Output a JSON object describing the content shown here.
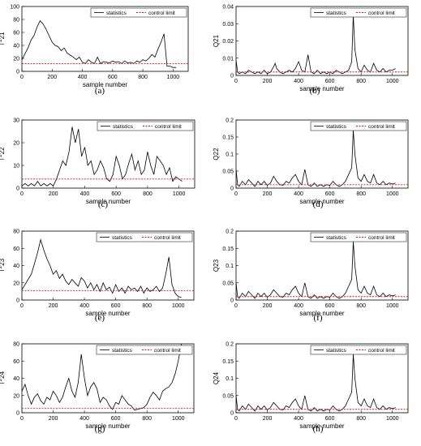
{
  "figure": {
    "legend": {
      "statistics": "statistics",
      "control_limit": "control limit"
    },
    "colors": {
      "statistics": "#000000",
      "control_limit": "#d11a1a",
      "axes": "#000000"
    }
  },
  "chart_data": [
    {
      "id": "a",
      "caption": "(a)",
      "type": "line",
      "xlabel": "sample number",
      "ylabel": "T^2 21",
      "xlim": [
        0,
        1100
      ],
      "ylim": [
        0,
        100
      ],
      "xticks": [
        0,
        200,
        400,
        600,
        800,
        1000
      ],
      "yticks": [
        0,
        20,
        40,
        60,
        80,
        100
      ],
      "control_limit": 12,
      "series": [
        {
          "name": "statistics",
          "values_x": [
            0,
            20,
            40,
            60,
            80,
            100,
            120,
            140,
            160,
            180,
            200,
            220,
            240,
            260,
            280,
            300,
            320,
            340,
            360,
            380,
            400,
            420,
            440,
            460,
            480,
            500,
            520,
            540,
            560,
            580,
            600,
            620,
            640,
            660,
            680,
            700,
            720,
            740,
            760,
            780,
            800,
            820,
            840,
            860,
            880,
            900,
            920,
            940,
            960,
            980,
            1000,
            1020
          ],
          "values_y": [
            18,
            27,
            36,
            48,
            55,
            68,
            78,
            73,
            65,
            55,
            45,
            40,
            38,
            32,
            36,
            28,
            25,
            22,
            18,
            22,
            14,
            12,
            18,
            14,
            12,
            22,
            12,
            15,
            14,
            13,
            16,
            14,
            15,
            12,
            16,
            13,
            14,
            12,
            16,
            14,
            18,
            16,
            20,
            26,
            22,
            34,
            45,
            58,
            8,
            8,
            6,
            6
          ]
        }
      ]
    },
    {
      "id": "b",
      "caption": "(b)",
      "type": "line",
      "xlabel": "sample number",
      "ylabel": "Q21",
      "xlim": [
        0,
        1100
      ],
      "ylim": [
        0,
        0.04
      ],
      "xticks": [
        0,
        200,
        400,
        600,
        800,
        1000
      ],
      "yticks": [
        0,
        0.01,
        0.02,
        0.03,
        0.04
      ],
      "control_limit": 0.002,
      "series": [
        {
          "name": "statistics",
          "values_x": [
            0,
            10,
            20,
            40,
            60,
            80,
            100,
            120,
            140,
            160,
            180,
            200,
            220,
            240,
            250,
            260,
            280,
            300,
            320,
            340,
            360,
            380,
            400,
            420,
            440,
            460,
            480,
            500,
            520,
            540,
            560,
            580,
            600,
            620,
            640,
            660,
            680,
            700,
            720,
            740,
            750,
            760,
            780,
            800,
            820,
            840,
            860,
            880,
            900,
            920,
            940,
            960,
            980,
            1000,
            1020
          ],
          "values_y": [
            0.009,
            0.002,
            0.001,
            0.002,
            0.001,
            0.003,
            0.002,
            0.001,
            0.002,
            0.001,
            0.003,
            0.001,
            0.002,
            0.005,
            0.007,
            0.004,
            0.002,
            0.001,
            0.002,
            0.003,
            0.002,
            0.004,
            0.008,
            0.003,
            0.002,
            0.012,
            0.002,
            0.001,
            0.003,
            0.001,
            0.002,
            0.001,
            0.002,
            0.001,
            0.003,
            0.002,
            0.001,
            0.002,
            0.003,
            0.008,
            0.035,
            0.015,
            0.004,
            0.002,
            0.006,
            0.003,
            0.002,
            0.007,
            0.003,
            0.002,
            0.004,
            0.002,
            0.003,
            0.003,
            0.004
          ]
        }
      ]
    },
    {
      "id": "c",
      "caption": "(c)",
      "type": "line",
      "xlabel": "sample number",
      "ylabel": "T^2 22",
      "xlim": [
        0,
        1100
      ],
      "ylim": [
        0,
        30
      ],
      "xticks": [
        0,
        200,
        400,
        600,
        800,
        1000
      ],
      "yticks": [
        0,
        10,
        20,
        30
      ],
      "control_limit": 4,
      "series": [
        {
          "name": "statistics",
          "values_x": [
            0,
            20,
            40,
            60,
            80,
            100,
            120,
            140,
            160,
            180,
            200,
            220,
            240,
            260,
            280,
            300,
            320,
            340,
            360,
            380,
            400,
            420,
            440,
            460,
            480,
            500,
            520,
            540,
            560,
            580,
            600,
            620,
            640,
            660,
            680,
            700,
            720,
            740,
            760,
            780,
            800,
            820,
            840,
            860,
            880,
            900,
            920,
            940,
            960,
            980,
            1000,
            1020
          ],
          "values_y": [
            1,
            2,
            1,
            2,
            1,
            3,
            1,
            2,
            1,
            2,
            1,
            4,
            8,
            12,
            10,
            16,
            27,
            20,
            26,
            14,
            18,
            10,
            12,
            6,
            8,
            12,
            9,
            4,
            3,
            6,
            14,
            10,
            4,
            6,
            11,
            15,
            8,
            12,
            6,
            8,
            16,
            10,
            6,
            14,
            12,
            10,
            6,
            9,
            3,
            5,
            4,
            3
          ]
        }
      ]
    },
    {
      "id": "d",
      "caption": "(d)",
      "type": "line",
      "xlabel": "sample number",
      "ylabel": "Q22",
      "xlim": [
        0,
        1100
      ],
      "ylim": [
        0,
        0.2
      ],
      "xticks": [
        0,
        200,
        400,
        600,
        800,
        1000
      ],
      "yticks": [
        0,
        0.05,
        0.1,
        0.15,
        0.2
      ],
      "control_limit": 0.01,
      "series": [
        {
          "name": "statistics",
          "values_x": [
            0,
            10,
            20,
            40,
            60,
            80,
            100,
            120,
            140,
            160,
            180,
            200,
            220,
            240,
            260,
            280,
            300,
            320,
            340,
            360,
            380,
            400,
            420,
            440,
            460,
            480,
            500,
            520,
            540,
            560,
            580,
            600,
            620,
            640,
            660,
            680,
            700,
            720,
            740,
            750,
            760,
            780,
            800,
            820,
            840,
            860,
            880,
            900,
            920,
            940,
            960,
            980,
            1000,
            1020
          ],
          "values_y": [
            0.055,
            0.01,
            0.005,
            0.02,
            0.01,
            0.025,
            0.015,
            0.005,
            0.02,
            0.01,
            0.02,
            0.008,
            0.015,
            0.035,
            0.02,
            0.01,
            0.008,
            0.02,
            0.015,
            0.03,
            0.04,
            0.02,
            0.01,
            0.055,
            0.01,
            0.005,
            0.015,
            0.005,
            0.01,
            0.005,
            0.01,
            0.008,
            0.02,
            0.01,
            0.005,
            0.01,
            0.02,
            0.04,
            0.06,
            0.17,
            0.1,
            0.03,
            0.02,
            0.04,
            0.02,
            0.015,
            0.04,
            0.015,
            0.01,
            0.02,
            0.01,
            0.015,
            0.012,
            0.015
          ]
        }
      ]
    },
    {
      "id": "e",
      "caption": "(e)",
      "type": "line",
      "xlabel": "sample number",
      "ylabel": "T^2 23",
      "xlim": [
        0,
        1100
      ],
      "ylim": [
        0,
        80
      ],
      "xticks": [
        0,
        200,
        400,
        600,
        800,
        1000
      ],
      "yticks": [
        0,
        20,
        40,
        60,
        80
      ],
      "control_limit": 11,
      "series": [
        {
          "name": "statistics",
          "values_x": [
            0,
            20,
            40,
            60,
            80,
            100,
            120,
            140,
            160,
            180,
            200,
            220,
            240,
            260,
            280,
            300,
            320,
            340,
            360,
            380,
            400,
            420,
            440,
            460,
            480,
            500,
            520,
            540,
            560,
            580,
            600,
            620,
            640,
            660,
            680,
            700,
            720,
            740,
            760,
            780,
            800,
            820,
            840,
            860,
            880,
            900,
            920,
            940,
            960,
            980,
            1000,
            1020
          ],
          "values_y": [
            12,
            18,
            24,
            30,
            42,
            55,
            70,
            58,
            48,
            40,
            30,
            34,
            25,
            30,
            22,
            18,
            24,
            20,
            16,
            26,
            22,
            14,
            20,
            12,
            18,
            10,
            20,
            12,
            15,
            8,
            18,
            10,
            14,
            8,
            16,
            12,
            14,
            10,
            16,
            8,
            14,
            10,
            12,
            16,
            10,
            14,
            30,
            50,
            18,
            8,
            4,
            3
          ]
        }
      ]
    },
    {
      "id": "f",
      "caption": "(f)",
      "type": "line",
      "xlabel": "sample number",
      "ylabel": "Q23",
      "xlim": [
        0,
        1100
      ],
      "ylim": [
        0,
        0.2
      ],
      "xticks": [
        0,
        200,
        400,
        600,
        800,
        1000
      ],
      "yticks": [
        0,
        0.05,
        0.1,
        0.15,
        0.2
      ],
      "control_limit": 0.01,
      "series": [
        {
          "name": "statistics",
          "values_x": [
            0,
            10,
            20,
            40,
            60,
            80,
            100,
            120,
            140,
            160,
            180,
            200,
            220,
            240,
            260,
            280,
            300,
            320,
            340,
            360,
            380,
            400,
            420,
            440,
            460,
            480,
            500,
            520,
            540,
            560,
            580,
            600,
            620,
            640,
            660,
            680,
            700,
            720,
            740,
            750,
            760,
            780,
            800,
            820,
            840,
            860,
            880,
            900,
            920,
            940,
            960,
            980,
            1000,
            1020
          ],
          "values_y": [
            0.05,
            0.01,
            0.005,
            0.02,
            0.01,
            0.025,
            0.015,
            0.005,
            0.02,
            0.01,
            0.02,
            0.008,
            0.015,
            0.03,
            0.02,
            0.01,
            0.008,
            0.02,
            0.015,
            0.03,
            0.04,
            0.02,
            0.01,
            0.05,
            0.01,
            0.005,
            0.015,
            0.005,
            0.01,
            0.005,
            0.01,
            0.008,
            0.02,
            0.01,
            0.005,
            0.01,
            0.02,
            0.04,
            0.06,
            0.17,
            0.1,
            0.03,
            0.02,
            0.04,
            0.02,
            0.015,
            0.04,
            0.015,
            0.01,
            0.02,
            0.01,
            0.015,
            0.012,
            0.015
          ]
        }
      ]
    },
    {
      "id": "g",
      "caption": "(g)",
      "type": "line",
      "xlabel": "sample number",
      "ylabel": "T^2 24",
      "xlim": [
        0,
        1100
      ],
      "ylim": [
        0,
        80
      ],
      "xticks": [
        0,
        200,
        400,
        600,
        800,
        1000
      ],
      "yticks": [
        0,
        20,
        40,
        60,
        80
      ],
      "control_limit": 5,
      "series": [
        {
          "name": "statistics",
          "values_x": [
            0,
            20,
            40,
            60,
            80,
            100,
            120,
            140,
            160,
            180,
            200,
            220,
            240,
            260,
            280,
            300,
            320,
            340,
            360,
            380,
            400,
            420,
            440,
            460,
            480,
            500,
            520,
            540,
            560,
            580,
            600,
            620,
            640,
            660,
            680,
            700,
            720,
            740,
            760,
            780,
            800,
            820,
            840,
            860,
            880,
            900,
            920,
            940,
            960,
            980,
            1000,
            1020
          ],
          "values_y": [
            25,
            33,
            20,
            10,
            18,
            22,
            14,
            10,
            18,
            15,
            25,
            20,
            12,
            18,
            30,
            40,
            25,
            18,
            35,
            68,
            40,
            20,
            30,
            35,
            28,
            12,
            18,
            15,
            8,
            4,
            12,
            10,
            20,
            15,
            10,
            8,
            3,
            4,
            5,
            6,
            10,
            18,
            24,
            20,
            15,
            25,
            28,
            30,
            35,
            45,
            60,
            80
          ]
        }
      ]
    },
    {
      "id": "h",
      "caption": "(h)",
      "type": "line",
      "xlabel": "sample number",
      "ylabel": "Q24",
      "xlim": [
        0,
        1100
      ],
      "ylim": [
        0,
        0.2
      ],
      "xticks": [
        0,
        200,
        400,
        600,
        800,
        1000
      ],
      "yticks": [
        0,
        0.05,
        0.1,
        0.15,
        0.2
      ],
      "control_limit": 0.01,
      "series": [
        {
          "name": "statistics",
          "values_x": [
            0,
            10,
            20,
            40,
            60,
            80,
            100,
            120,
            140,
            160,
            180,
            200,
            220,
            240,
            260,
            280,
            300,
            320,
            340,
            360,
            380,
            400,
            420,
            440,
            460,
            480,
            500,
            520,
            540,
            560,
            580,
            600,
            620,
            640,
            660,
            680,
            700,
            720,
            740,
            750,
            760,
            780,
            800,
            820,
            840,
            860,
            880,
            900,
            920,
            940,
            960,
            980,
            1000,
            1020
          ],
          "values_y": [
            0.05,
            0.01,
            0.005,
            0.02,
            0.01,
            0.025,
            0.015,
            0.005,
            0.02,
            0.01,
            0.02,
            0.008,
            0.015,
            0.03,
            0.02,
            0.01,
            0.008,
            0.02,
            0.015,
            0.03,
            0.04,
            0.02,
            0.01,
            0.05,
            0.01,
            0.005,
            0.015,
            0.005,
            0.01,
            0.005,
            0.01,
            0.008,
            0.02,
            0.01,
            0.005,
            0.01,
            0.02,
            0.04,
            0.06,
            0.17,
            0.1,
            0.03,
            0.02,
            0.04,
            0.02,
            0.015,
            0.04,
            0.015,
            0.01,
            0.02,
            0.01,
            0.015,
            0.012,
            0.015
          ]
        }
      ]
    }
  ]
}
